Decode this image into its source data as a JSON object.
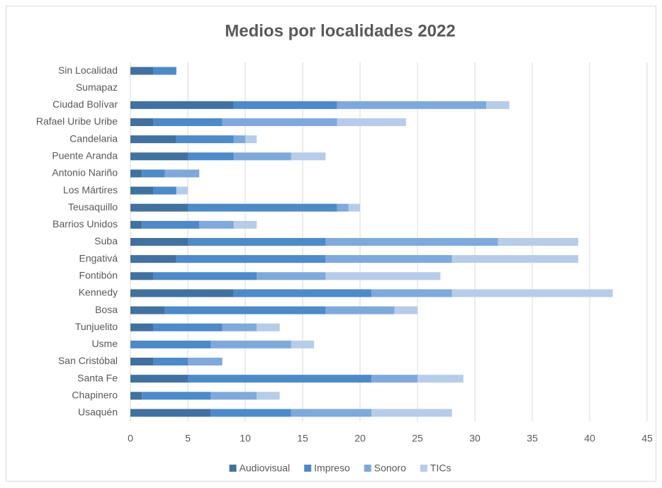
{
  "chart_data": {
    "type": "stacked_barh",
    "title": "Medios por localidades 2022",
    "categories": [
      "Sin Localidad",
      "Sumapaz",
      "Ciudad Bolívar",
      "Rafael Uribe Uribe",
      "Candelaria",
      "Puente Aranda",
      "Antonio Nariño",
      "Los Mártires",
      "Teusaquillo",
      "Barrios Unidos",
      "Suba",
      "Engativá",
      "Fontibón",
      "Kennedy",
      "Bosa",
      "Tunjuelito",
      "Usme",
      "San Cristóbal",
      "Santa Fe",
      "Chapinero",
      "Usaquén"
    ],
    "series": [
      {
        "name": "Audiovisual",
        "color": "#41729f",
        "values": [
          2,
          0,
          9,
          2,
          4,
          5,
          1,
          2,
          5,
          1,
          5,
          4,
          2,
          9,
          3,
          2,
          0,
          2,
          5,
          1,
          7
        ]
      },
      {
        "name": "Impreso",
        "color": "#4e8ac8",
        "values": [
          2,
          0,
          9,
          6,
          5,
          4,
          2,
          2,
          13,
          5,
          12,
          13,
          9,
          12,
          14,
          6,
          7,
          3,
          16,
          6,
          7
        ]
      },
      {
        "name": "Sonoro",
        "color": "#7fa9db",
        "values": [
          0,
          0,
          13,
          10,
          1,
          5,
          3,
          0,
          1,
          3,
          15,
          11,
          6,
          7,
          6,
          3,
          7,
          3,
          4,
          4,
          7
        ]
      },
      {
        "name": "TICs",
        "color": "#b6cce9",
        "values": [
          0,
          0,
          2,
          6,
          1,
          3,
          0,
          1,
          1,
          2,
          7,
          11,
          10,
          14,
          2,
          2,
          2,
          0,
          4,
          2,
          7
        ]
      }
    ],
    "xlim": [
      0,
      45
    ],
    "xticks": [
      0,
      5,
      10,
      15,
      20,
      25,
      30,
      35,
      40,
      45
    ],
    "grid": true,
    "legend": "bottom"
  }
}
